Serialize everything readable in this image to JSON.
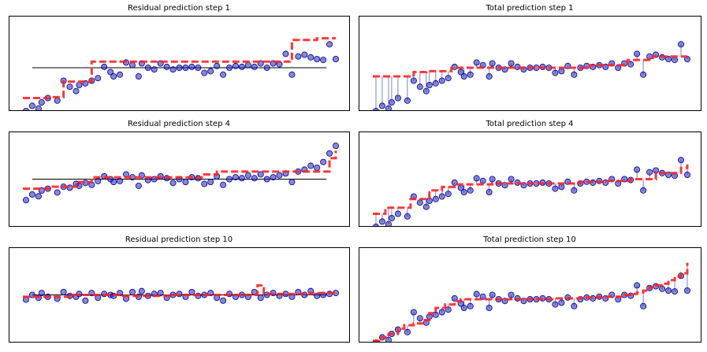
{
  "figure": {
    "background": "#ffffff",
    "point_fill": "#2222bb",
    "point_edge": "#000088",
    "step_color": "#ff2222",
    "baseline_color": "#000000",
    "residual_color": "#1f1fb4"
  },
  "chart_data": [
    {
      "type": "scatter",
      "title": "Residual prediction step 1",
      "xlabel": "",
      "ylabel": "",
      "grid": false,
      "xlim": [
        0,
        100
      ],
      "ylim": [
        -50,
        60
      ],
      "baseline": 0,
      "x": [
        1,
        3,
        5,
        6,
        8,
        11,
        13,
        15,
        17,
        18,
        20,
        22,
        24,
        26,
        28,
        29,
        31,
        33,
        35,
        37,
        38,
        40,
        42,
        44,
        46,
        48,
        50,
        52,
        54,
        56,
        58,
        60,
        62,
        64,
        66,
        68,
        70,
        72,
        74,
        76,
        78,
        80,
        82,
        84,
        86,
        88,
        90,
        92,
        94,
        96,
        98,
        100
      ],
      "y": [
        -50,
        -44,
        -47,
        -40,
        -35,
        -38,
        -15,
        -22,
        -27,
        -20,
        -18,
        -15,
        -12,
        1,
        -5,
        -10,
        -8,
        6,
        3,
        -10,
        5,
        0,
        -2,
        5,
        1,
        -2,
        0,
        0,
        1,
        0,
        -6,
        -4,
        2,
        -8,
        0,
        2,
        1,
        3,
        1,
        5,
        0,
        5,
        4,
        16,
        -8,
        13,
        15,
        12,
        10,
        9,
        27,
        10
      ],
      "step": {
        "x": [
          0,
          5,
          9,
          13,
          17,
          22,
          26,
          30,
          34,
          38,
          42,
          46,
          50,
          54,
          58,
          62,
          66,
          70,
          74,
          78,
          82,
          86,
          90,
          94,
          98,
          100
        ],
        "y": [
          -35,
          -35,
          -34,
          -16,
          -16,
          7,
          7,
          7,
          7,
          7,
          7,
          7,
          7,
          7,
          7,
          7,
          7,
          7,
          7,
          7,
          7,
          32,
          32,
          34,
          34,
          34
        ]
      }
    },
    {
      "type": "scatter",
      "title": "Total prediction step 1",
      "xlabel": "",
      "ylabel": "",
      "grid": false,
      "xlim": [
        0,
        100
      ],
      "ylim": [
        -50,
        60
      ],
      "x": [
        1,
        3,
        5,
        6,
        8,
        11,
        13,
        15,
        17,
        18,
        20,
        22,
        24,
        26,
        28,
        29,
        31,
        33,
        35,
        37,
        38,
        40,
        42,
        44,
        46,
        48,
        50,
        52,
        54,
        56,
        58,
        60,
        62,
        64,
        66,
        68,
        70,
        72,
        74,
        76,
        78,
        80,
        82,
        84,
        86,
        88,
        90,
        92,
        94,
        96,
        98,
        100
      ],
      "y": [
        -50,
        -44,
        -47,
        -40,
        -35,
        -38,
        -15,
        -22,
        -27,
        -20,
        -18,
        -15,
        -12,
        1,
        -5,
        -10,
        -8,
        6,
        3,
        -10,
        5,
        0,
        -2,
        5,
        1,
        -2,
        0,
        0,
        1,
        0,
        -6,
        -4,
        2,
        -8,
        0,
        2,
        1,
        3,
        1,
        5,
        0,
        5,
        4,
        16,
        -8,
        13,
        15,
        12,
        10,
        9,
        27,
        10
      ],
      "step": {
        "x": [
          0,
          9,
          13,
          17,
          25,
          60,
          63,
          69,
          73,
          77,
          81,
          85,
          89,
          93,
          97,
          100
        ],
        "y": [
          -10,
          -10,
          -5,
          -4,
          0,
          0,
          0,
          3,
          3,
          3,
          9,
          9,
          13,
          13,
          13,
          13
        ]
      }
    },
    {
      "type": "scatter",
      "title": "Residual prediction step 4",
      "xlabel": "",
      "ylabel": "",
      "grid": false,
      "xlim": [
        0,
        100
      ],
      "ylim": [
        -50,
        50
      ],
      "baseline": 0,
      "x": [
        1,
        3,
        5,
        6,
        8,
        11,
        13,
        15,
        17,
        18,
        20,
        22,
        24,
        26,
        28,
        29,
        31,
        33,
        35,
        37,
        38,
        40,
        42,
        44,
        46,
        48,
        50,
        52,
        54,
        56,
        58,
        60,
        62,
        64,
        66,
        68,
        70,
        72,
        74,
        76,
        78,
        80,
        82,
        84,
        86,
        88,
        90,
        92,
        94,
        96,
        98,
        100
      ],
      "y": [
        -22,
        -16,
        -18,
        -12,
        -10,
        -14,
        -8,
        -9,
        -5,
        -7,
        -4,
        -6,
        -2,
        3,
        0,
        -3,
        -2,
        5,
        2,
        -7,
        4,
        -1,
        0,
        3,
        1,
        -4,
        0,
        -3,
        2,
        1,
        -5,
        -3,
        3,
        -6,
        0,
        2,
        1,
        4,
        1,
        5,
        0,
        2,
        4,
        6,
        -3,
        8,
        10,
        14,
        12,
        18,
        27,
        35
      ],
      "step": {
        "x": [
          0,
          5,
          9,
          13,
          17,
          20,
          22,
          26,
          30,
          34,
          38,
          42,
          46,
          50,
          54,
          58,
          62,
          66,
          70,
          74,
          78,
          82,
          86,
          90,
          94,
          98,
          100
        ],
        "y": [
          -10,
          -10,
          -8,
          -8,
          -3,
          -3,
          2,
          2,
          2,
          2,
          2,
          2,
          2,
          2,
          2,
          5,
          8,
          8,
          8,
          8,
          8,
          8,
          8,
          8,
          8,
          22,
          30
        ]
      }
    },
    {
      "type": "scatter",
      "title": "Total prediction step 4",
      "xlabel": "",
      "ylabel": "",
      "grid": false,
      "xlim": [
        0,
        100
      ],
      "ylim": [
        -50,
        60
      ],
      "x": [
        1,
        3,
        5,
        6,
        8,
        11,
        13,
        15,
        17,
        18,
        20,
        22,
        24,
        26,
        28,
        29,
        31,
        33,
        35,
        37,
        38,
        40,
        42,
        44,
        46,
        48,
        50,
        52,
        54,
        56,
        58,
        60,
        62,
        64,
        66,
        68,
        70,
        72,
        74,
        76,
        78,
        80,
        82,
        84,
        86,
        88,
        90,
        92,
        94,
        96,
        98,
        100
      ],
      "y": [
        -50,
        -44,
        -47,
        -40,
        -35,
        -38,
        -15,
        -22,
        -27,
        -20,
        -18,
        -15,
        -12,
        1,
        -5,
        -10,
        -8,
        6,
        3,
        -10,
        5,
        0,
        -2,
        5,
        1,
        -2,
        0,
        0,
        1,
        0,
        -6,
        -4,
        2,
        -8,
        0,
        2,
        1,
        3,
        1,
        5,
        0,
        5,
        4,
        16,
        -8,
        13,
        15,
        12,
        10,
        9,
        27,
        10
      ],
      "step": {
        "x": [
          0,
          4,
          8,
          12,
          16,
          18,
          22,
          26,
          30,
          34,
          38,
          42,
          46,
          50,
          54,
          58,
          62,
          66,
          70,
          74,
          78,
          82,
          86,
          90,
          94,
          98,
          100
        ],
        "y": [
          -35,
          -28,
          -28,
          -18,
          -18,
          -8,
          -4,
          -1,
          -1,
          -1,
          0,
          0,
          0,
          0,
          0,
          0,
          0,
          2,
          2,
          3,
          3,
          5,
          5,
          12,
          12,
          18,
          22
        ]
      }
    },
    {
      "type": "scatter",
      "title": "Residual prediction step 10",
      "xlabel": "",
      "ylabel": "",
      "grid": false,
      "xlim": [
        0,
        100
      ],
      "ylim": [
        -50,
        50
      ],
      "baseline": 0,
      "x": [
        1,
        3,
        5,
        6,
        8,
        11,
        13,
        15,
        17,
        18,
        20,
        22,
        24,
        26,
        28,
        29,
        31,
        33,
        35,
        37,
        38,
        40,
        42,
        44,
        46,
        48,
        50,
        52,
        54,
        56,
        58,
        60,
        62,
        64,
        66,
        68,
        70,
        72,
        74,
        76,
        78,
        80,
        82,
        84,
        86,
        88,
        90,
        92,
        94,
        96,
        98,
        100
      ],
      "y": [
        -5,
        0,
        -3,
        2,
        -2,
        -4,
        3,
        -1,
        -2,
        1,
        -6,
        2,
        -3,
        1,
        0,
        -1,
        2,
        -4,
        3,
        -2,
        4,
        -1,
        1,
        2,
        -3,
        0,
        1,
        -2,
        3,
        -1,
        0,
        2,
        -3,
        -6,
        1,
        -2,
        0,
        -2,
        3,
        -3,
        0,
        2,
        -1,
        1,
        -2,
        3,
        0,
        4,
        -1,
        0,
        1,
        2
      ],
      "step": {
        "x": [
          0,
          8,
          16,
          24,
          32,
          40,
          48,
          56,
          60,
          64,
          68,
          72,
          74,
          75,
          77,
          80,
          86,
          92,
          98,
          100
        ],
        "y": [
          -2,
          -2,
          0,
          0,
          -1,
          -1,
          0,
          0,
          0,
          0,
          0,
          0,
          0,
          10,
          1,
          1,
          1,
          2,
          2,
          2
        ]
      }
    },
    {
      "type": "scatter",
      "title": "Total prediction step 10",
      "xlabel": "",
      "ylabel": "",
      "grid": false,
      "xlim": [
        0,
        100
      ],
      "ylim": [
        -50,
        60
      ],
      "x": [
        1,
        3,
        5,
        6,
        8,
        11,
        13,
        15,
        17,
        18,
        20,
        22,
        24,
        26,
        28,
        29,
        31,
        33,
        35,
        37,
        38,
        40,
        42,
        44,
        46,
        48,
        50,
        52,
        54,
        56,
        58,
        60,
        62,
        64,
        66,
        68,
        70,
        72,
        74,
        76,
        78,
        80,
        82,
        84,
        86,
        88,
        90,
        92,
        94,
        96,
        98,
        100
      ],
      "y": [
        -50,
        -44,
        -47,
        -40,
        -35,
        -38,
        -15,
        -22,
        -27,
        -20,
        -18,
        -15,
        -12,
        1,
        -5,
        -10,
        -8,
        6,
        3,
        -10,
        5,
        0,
        -2,
        5,
        1,
        -2,
        0,
        0,
        1,
        0,
        -6,
        -4,
        2,
        -8,
        0,
        2,
        1,
        3,
        1,
        5,
        0,
        5,
        4,
        16,
        -8,
        13,
        15,
        12,
        10,
        9,
        27,
        10
      ],
      "step": {
        "x": [
          0,
          2,
          5,
          8,
          10,
          13,
          16,
          18,
          20,
          23,
          26,
          28,
          30,
          34,
          38,
          42,
          46,
          50,
          54,
          58,
          62,
          66,
          68,
          70,
          72,
          74,
          76,
          78,
          80,
          82,
          84,
          86,
          88,
          90,
          92,
          94,
          96,
          98,
          100
        ],
        "y": [
          -48,
          -44,
          -40,
          -34,
          -30,
          -28,
          -24,
          -16,
          -10,
          -6,
          -2,
          0,
          0,
          0,
          0,
          0,
          0,
          0,
          0,
          1,
          1,
          2,
          2,
          2,
          3,
          3,
          3,
          3,
          5,
          6,
          8,
          10,
          14,
          16,
          18,
          22,
          26,
          30,
          42
        ]
      }
    }
  ]
}
